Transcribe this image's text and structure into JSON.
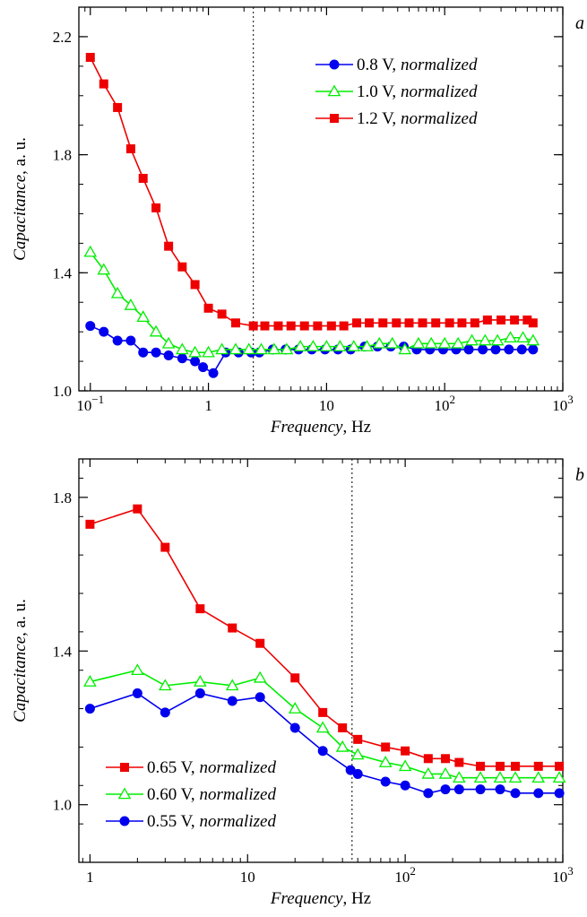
{
  "chart_data": [
    {
      "type": "line",
      "panel_letter": "a",
      "xlabel": "Frequency",
      "xlabel_unit": ", Hz",
      "ylabel": "Capacitance",
      "ylabel_unit": ", a. u.",
      "x_scale": "log",
      "xlim": [
        0.08,
        1000
      ],
      "ylim": [
        1.0,
        2.3
      ],
      "x_ticks": [
        {
          "value": 0.1,
          "base": "10",
          "exp": "−1"
        },
        {
          "value": 1,
          "plain": "1"
        },
        {
          "value": 10,
          "plain": "10"
        },
        {
          "value": 100,
          "base": "10",
          "exp": "2"
        },
        {
          "value": 1000,
          "base": "10",
          "exp": "3"
        }
      ],
      "y_ticks": [
        {
          "value": 1.0,
          "label": "1.0"
        },
        {
          "value": 1.4,
          "label": "1.4"
        },
        {
          "value": 1.8,
          "label": "1.8"
        },
        {
          "value": 2.2,
          "label": "2.2"
        }
      ],
      "vline": 2.4,
      "legend_position": "top-right",
      "series": [
        {
          "name": "0.8 V",
          "name_suffix": "normalized",
          "color": "#0000ee",
          "marker": "circle",
          "x": [
            0.1,
            0.13,
            0.17,
            0.22,
            0.28,
            0.36,
            0.46,
            0.6,
            0.77,
            0.9,
            1.1,
            1.4,
            1.8,
            2.3,
            2.7,
            3.5,
            4.5,
            5.8,
            7.5,
            9.7,
            12.5,
            16,
            21,
            27,
            35,
            45,
            58,
            75,
            97,
            125,
            160,
            210,
            270,
            350,
            450,
            560
          ],
          "y": [
            1.22,
            1.2,
            1.17,
            1.17,
            1.13,
            1.13,
            1.12,
            1.11,
            1.1,
            1.08,
            1.06,
            1.13,
            1.13,
            1.13,
            1.13,
            1.14,
            1.14,
            1.14,
            1.14,
            1.14,
            1.14,
            1.14,
            1.15,
            1.15,
            1.15,
            1.15,
            1.14,
            1.14,
            1.14,
            1.14,
            1.14,
            1.14,
            1.14,
            1.14,
            1.14,
            1.14
          ]
        },
        {
          "name": "1.0 V",
          "name_suffix": "normalized",
          "color": "#00ee00",
          "marker": "triangle",
          "x": [
            0.1,
            0.13,
            0.17,
            0.22,
            0.28,
            0.36,
            0.46,
            0.6,
            0.77,
            1.0,
            1.3,
            1.7,
            2.2,
            2.8,
            3.6,
            4.6,
            6.0,
            7.7,
            10,
            13,
            17,
            22,
            28,
            36,
            46,
            60,
            77,
            100,
            130,
            170,
            220,
            280,
            360,
            460,
            560
          ],
          "y": [
            1.47,
            1.41,
            1.33,
            1.29,
            1.25,
            1.2,
            1.16,
            1.14,
            1.13,
            1.13,
            1.14,
            1.14,
            1.14,
            1.14,
            1.14,
            1.14,
            1.15,
            1.15,
            1.15,
            1.15,
            1.15,
            1.15,
            1.16,
            1.16,
            1.14,
            1.16,
            1.16,
            1.16,
            1.16,
            1.17,
            1.17,
            1.17,
            1.18,
            1.18,
            1.17
          ]
        },
        {
          "name": "1.2 V",
          "name_suffix": "normalized",
          "color": "#ee0000",
          "marker": "square",
          "x": [
            0.1,
            0.13,
            0.17,
            0.22,
            0.28,
            0.36,
            0.46,
            0.6,
            0.77,
            1.0,
            1.3,
            1.7,
            2.4,
            3.0,
            3.9,
            5.0,
            6.5,
            8.4,
            11,
            14,
            18,
            23,
            30,
            39,
            50,
            65,
            84,
            110,
            140,
            180,
            230,
            300,
            390,
            500,
            560
          ],
          "y": [
            2.13,
            2.04,
            1.96,
            1.82,
            1.72,
            1.62,
            1.49,
            1.42,
            1.36,
            1.28,
            1.26,
            1.23,
            1.22,
            1.22,
            1.22,
            1.22,
            1.22,
            1.22,
            1.22,
            1.22,
            1.23,
            1.23,
            1.23,
            1.23,
            1.23,
            1.23,
            1.23,
            1.23,
            1.23,
            1.23,
            1.24,
            1.24,
            1.24,
            1.24,
            1.23
          ]
        }
      ]
    },
    {
      "type": "line",
      "panel_letter": "b",
      "xlabel": "Frequency",
      "xlabel_unit": ", Hz",
      "ylabel": "Capacitance",
      "ylabel_unit": ", a. u.",
      "x_scale": "log",
      "xlim": [
        0.85,
        1000
      ],
      "ylim": [
        0.85,
        1.9
      ],
      "x_ticks": [
        {
          "value": 1,
          "plain": "1"
        },
        {
          "value": 10,
          "plain": "10"
        },
        {
          "value": 100,
          "base": "10",
          "exp": "2"
        },
        {
          "value": 1000,
          "base": "10",
          "exp": "3"
        }
      ],
      "y_ticks": [
        {
          "value": 1.0,
          "label": "1.0"
        },
        {
          "value": 1.4,
          "label": "1.4"
        },
        {
          "value": 1.8,
          "label": "1.8"
        }
      ],
      "vline": 46,
      "legend_position": "bottom-left",
      "series": [
        {
          "name": "0.65 V",
          "name_suffix": "normalized",
          "color": "#ee0000",
          "marker": "square",
          "x": [
            1,
            2,
            3,
            5,
            8,
            12,
            20,
            30,
            40,
            50,
            75,
            100,
            140,
            180,
            220,
            300,
            400,
            500,
            700,
            950
          ],
          "y": [
            1.73,
            1.77,
            1.67,
            1.51,
            1.46,
            1.42,
            1.33,
            1.24,
            1.2,
            1.17,
            1.15,
            1.14,
            1.12,
            1.12,
            1.11,
            1.1,
            1.1,
            1.1,
            1.1,
            1.1
          ]
        },
        {
          "name": "0.60 V",
          "name_suffix": "normalized",
          "color": "#00ee00",
          "marker": "triangle",
          "x": [
            1,
            2,
            3,
            5,
            8,
            12,
            20,
            30,
            40,
            50,
            75,
            100,
            140,
            180,
            220,
            300,
            400,
            500,
            700,
            950
          ],
          "y": [
            1.32,
            1.35,
            1.31,
            1.32,
            1.31,
            1.33,
            1.25,
            1.2,
            1.15,
            1.13,
            1.11,
            1.1,
            1.08,
            1.08,
            1.07,
            1.07,
            1.07,
            1.07,
            1.07,
            1.07
          ]
        },
        {
          "name": "0.55 V",
          "name_suffix": "normalized",
          "color": "#0000ee",
          "marker": "circle",
          "x": [
            1,
            2,
            3,
            5,
            8,
            12,
            20,
            30,
            45,
            50,
            75,
            100,
            140,
            180,
            220,
            300,
            400,
            500,
            700,
            950
          ],
          "y": [
            1.25,
            1.29,
            1.24,
            1.29,
            1.27,
            1.28,
            1.2,
            1.14,
            1.09,
            1.08,
            1.06,
            1.05,
            1.03,
            1.04,
            1.04,
            1.04,
            1.04,
            1.03,
            1.03,
            1.03
          ]
        }
      ]
    }
  ]
}
